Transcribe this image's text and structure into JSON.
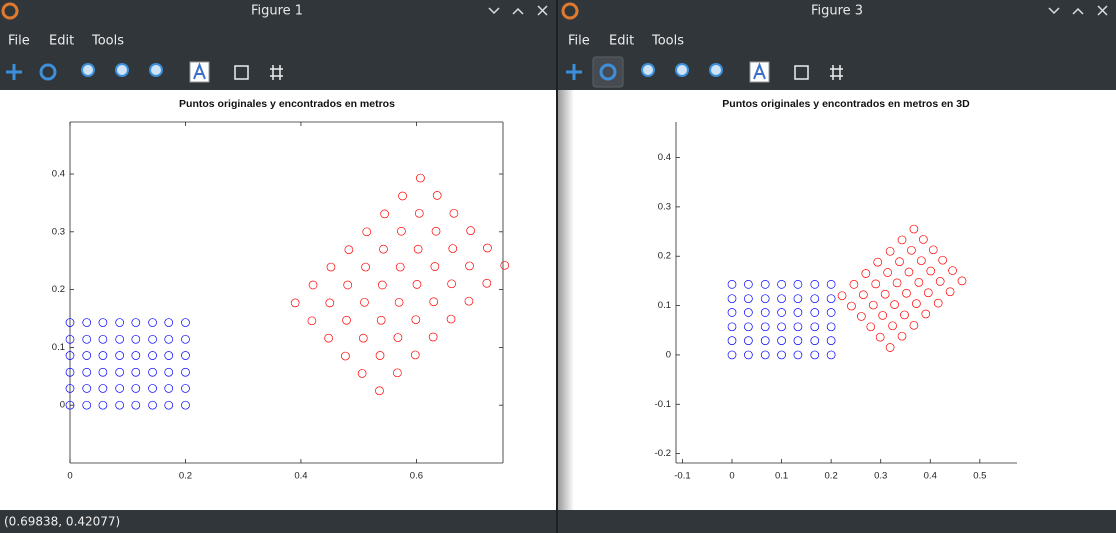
{
  "windows": [
    {
      "title": "Figure 1",
      "menu": [
        "File",
        "Edit",
        "Tools"
      ],
      "status": "(0.69838, 0.42077)"
    },
    {
      "title": "Figure 3",
      "menu": [
        "File",
        "Edit",
        "Tools"
      ]
    }
  ],
  "chart_data": [
    {
      "type": "scatter",
      "title": "Puntos originales y encontrados en metros",
      "box": true,
      "xlim": [
        0,
        0.75
      ],
      "ylim": [
        -0.1,
        0.49
      ],
      "xticks": [
        0,
        0.2,
        0.4,
        0.6
      ],
      "yticks": [
        0,
        0.1,
        0.2,
        0.3,
        0.4
      ],
      "series": [
        {
          "color": "#0000ff",
          "x": [
            0,
            0.029,
            0.057,
            0.086,
            0.114,
            0.143,
            0.171,
            0.2,
            0,
            0.029,
            0.057,
            0.086,
            0.114,
            0.143,
            0.171,
            0.2,
            0,
            0.029,
            0.057,
            0.086,
            0.114,
            0.143,
            0.171,
            0.2,
            0,
            0.029,
            0.057,
            0.086,
            0.114,
            0.143,
            0.171,
            0.2,
            0,
            0.029,
            0.057,
            0.086,
            0.114,
            0.143,
            0.171,
            0.2,
            0,
            0.029,
            0.057,
            0.086,
            0.114,
            0.143,
            0.171,
            0.2
          ],
          "y": [
            0,
            0,
            0,
            0,
            0,
            0,
            0,
            0,
            0.029,
            0.029,
            0.029,
            0.029,
            0.029,
            0.029,
            0.029,
            0.029,
            0.057,
            0.057,
            0.057,
            0.057,
            0.057,
            0.057,
            0.057,
            0.057,
            0.086,
            0.086,
            0.086,
            0.086,
            0.086,
            0.086,
            0.086,
            0.086,
            0.114,
            0.114,
            0.114,
            0.114,
            0.114,
            0.114,
            0.114,
            0.114,
            0.143,
            0.143,
            0.143,
            0.143,
            0.143,
            0.143,
            0.143,
            0.143
          ]
        },
        {
          "color": "#ff0000",
          "x": [
            0.607,
            0.636,
            0.665,
            0.694,
            0.723,
            0.753,
            0.576,
            0.605,
            0.634,
            0.663,
            0.692,
            0.722,
            0.545,
            0.574,
            0.603,
            0.632,
            0.661,
            0.691,
            0.514,
            0.543,
            0.572,
            0.601,
            0.63,
            0.66,
            0.483,
            0.512,
            0.541,
            0.57,
            0.599,
            0.629,
            0.452,
            0.481,
            0.51,
            0.539,
            0.568,
            0.598,
            0.421,
            0.45,
            0.479,
            0.508,
            0.537,
            0.567,
            0.39,
            0.419,
            0.448,
            0.477,
            0.506,
            0.536
          ],
          "y": [
            0.393,
            0.363,
            0.332,
            0.302,
            0.272,
            0.242,
            0.362,
            0.332,
            0.301,
            0.271,
            0.241,
            0.211,
            0.331,
            0.301,
            0.27,
            0.24,
            0.21,
            0.18,
            0.3,
            0.27,
            0.239,
            0.209,
            0.179,
            0.149,
            0.269,
            0.239,
            0.208,
            0.178,
            0.148,
            0.118,
            0.239,
            0.208,
            0.178,
            0.147,
            0.117,
            0.087,
            0.208,
            0.177,
            0.147,
            0.116,
            0.086,
            0.056,
            0.177,
            0.146,
            0.116,
            0.085,
            0.055,
            0.025
          ]
        }
      ]
    },
    {
      "type": "scatter",
      "title": "Puntos originales y encontrados en metros en 3D",
      "box": false,
      "xlim": [
        -0.113,
        0.575
      ],
      "ylim": [
        -0.219,
        0.472
      ],
      "xticks": [
        -0.1,
        0,
        0.1,
        0.2,
        0.3,
        0.4,
        0.5
      ],
      "yticks": [
        -0.2,
        -0.1,
        0,
        0.1,
        0.2,
        0.3,
        0.4
      ],
      "series": [
        {
          "color": "#0000ff",
          "x": [
            0,
            0.033,
            0.067,
            0.1,
            0.133,
            0.167,
            0.2,
            0,
            0.033,
            0.067,
            0.1,
            0.133,
            0.167,
            0.2,
            0,
            0.033,
            0.067,
            0.1,
            0.133,
            0.167,
            0.2,
            0,
            0.033,
            0.067,
            0.1,
            0.133,
            0.167,
            0.2,
            0,
            0.033,
            0.067,
            0.1,
            0.133,
            0.167,
            0.2,
            0,
            0.033,
            0.067,
            0.1,
            0.133,
            0.167,
            0.2
          ],
          "y": [
            0,
            0,
            0,
            0,
            0,
            0,
            0,
            0.029,
            0.029,
            0.029,
            0.029,
            0.029,
            0.029,
            0.029,
            0.057,
            0.057,
            0.057,
            0.057,
            0.057,
            0.057,
            0.057,
            0.086,
            0.086,
            0.086,
            0.086,
            0.086,
            0.086,
            0.086,
            0.114,
            0.114,
            0.114,
            0.114,
            0.114,
            0.114,
            0.114,
            0.143,
            0.143,
            0.143,
            0.143,
            0.143,
            0.143,
            0.143
          ]
        },
        {
          "color": "#ff0000",
          "x": [
            0.367,
            0.386,
            0.406,
            0.425,
            0.445,
            0.464,
            0.343,
            0.362,
            0.382,
            0.401,
            0.42,
            0.44,
            0.319,
            0.338,
            0.357,
            0.377,
            0.396,
            0.416,
            0.294,
            0.314,
            0.333,
            0.352,
            0.372,
            0.391,
            0.27,
            0.29,
            0.309,
            0.328,
            0.348,
            0.367,
            0.246,
            0.265,
            0.285,
            0.304,
            0.324,
            0.343,
            0.222,
            0.241,
            0.261,
            0.28,
            0.299,
            0.319
          ],
          "y": [
            0.255,
            0.234,
            0.213,
            0.192,
            0.171,
            0.15,
            0.233,
            0.212,
            0.191,
            0.17,
            0.149,
            0.128,
            0.21,
            0.189,
            0.168,
            0.147,
            0.126,
            0.105,
            0.188,
            0.167,
            0.146,
            0.125,
            0.104,
            0.083,
            0.165,
            0.144,
            0.123,
            0.102,
            0.081,
            0.06,
            0.143,
            0.122,
            0.101,
            0.08,
            0.059,
            0.038,
            0.12,
            0.099,
            0.078,
            0.057,
            0.036,
            0.015
          ]
        }
      ]
    }
  ]
}
